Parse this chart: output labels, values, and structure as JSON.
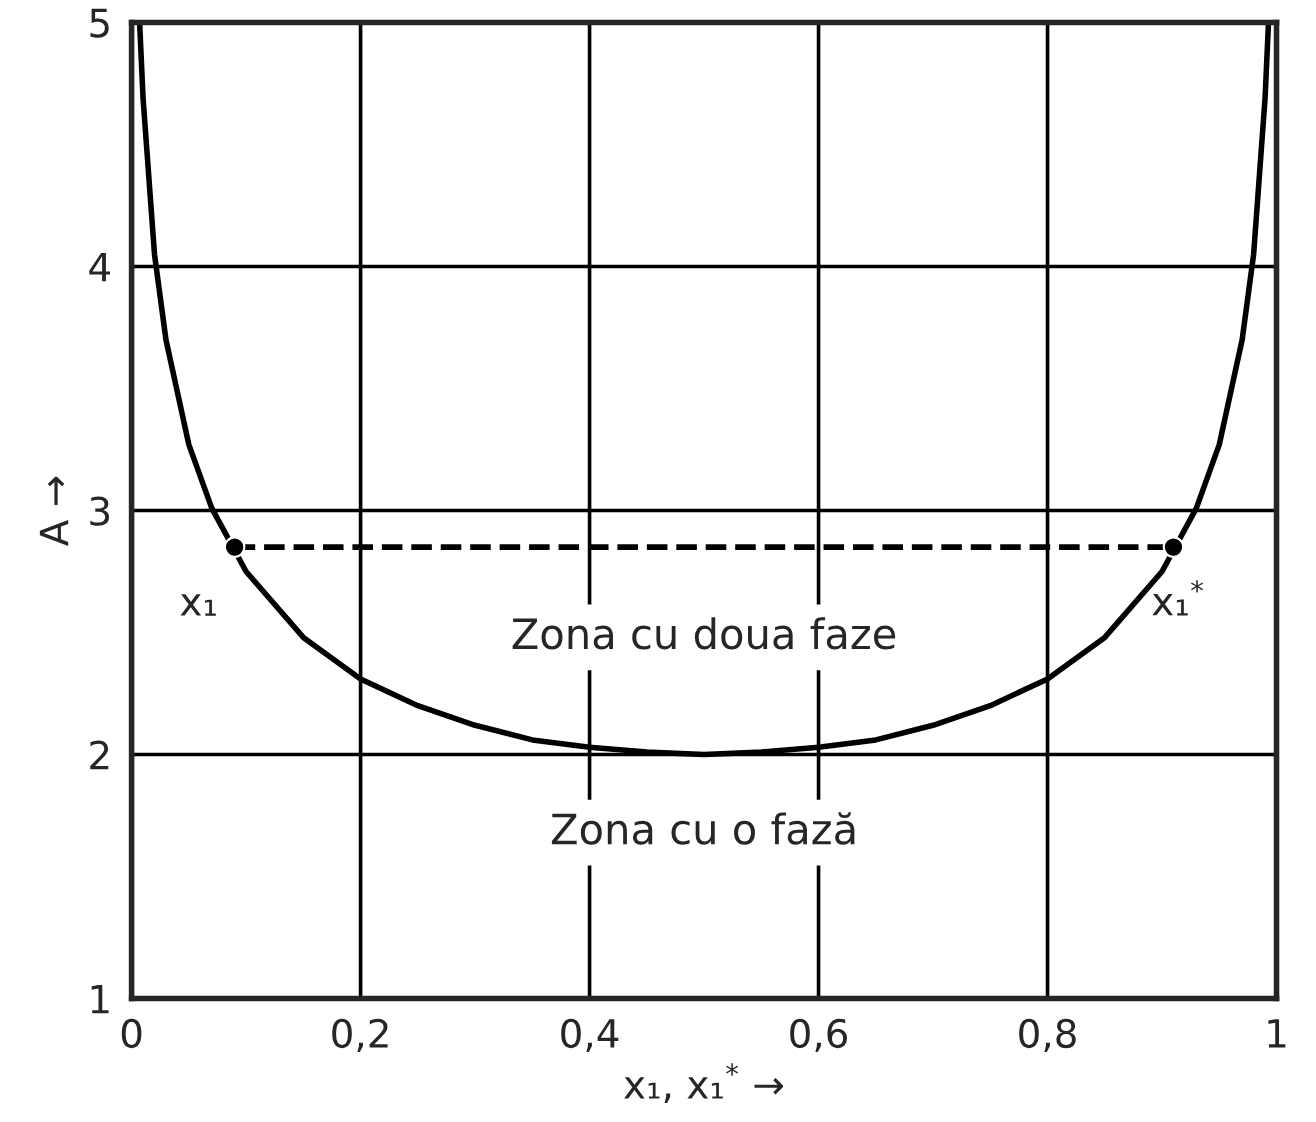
{
  "chart_data": {
    "type": "line",
    "xlabel": "x₁, x₁$^{*}$ →",
    "ylabel": "A →",
    "series": [
      {
        "color": "#000000",
        "line_style": "solid",
        "marker": "none",
        "x": [
          0.007,
          0.01,
          0.02,
          0.03,
          0.05,
          0.07,
          0.1,
          0.15,
          0.2,
          0.25,
          0.3,
          0.35,
          0.4,
          0.45,
          0.5,
          0.55,
          0.6,
          0.65,
          0.7,
          0.75,
          0.8,
          0.85,
          0.9,
          0.93,
          0.95,
          0.97,
          0.98,
          0.99,
          0.993
        ],
        "values": [
          5.0,
          4.69,
          4.05,
          3.7,
          3.27,
          3.01,
          2.75,
          2.48,
          2.31,
          2.2,
          2.12,
          2.06,
          2.03,
          2.01,
          2.0,
          2.01,
          2.03,
          2.06,
          2.12,
          2.2,
          2.31,
          2.48,
          2.75,
          3.01,
          3.27,
          3.7,
          4.05,
          4.69,
          5.0
        ]
      },
      {
        "color": "#000000",
        "line_style": "dashed",
        "marker": "circle",
        "x": [
          0.09,
          0.91
        ],
        "values": [
          2.85,
          2.85
        ]
      }
    ],
    "annotations": [
      {
        "text": "x₁",
        "x": 0.09,
        "y": 2.85
      },
      {
        "text": "x₁$^{*}$",
        "x": 0.91,
        "y": 2.85
      },
      "Zona cu doua faze",
      "Zona cu o fază"
    ],
    "xlim": [
      0,
      1
    ],
    "ylim": [
      1,
      5
    ],
    "xticks": [
      0,
      {
        "value": 0.2,
        "label": "0,2"
      },
      {
        "value": 0.4,
        "label": "0,4"
      },
      {
        "value": 0.6,
        "label": "0,6"
      },
      {
        "value": 0.8,
        "label": "0,8"
      },
      1
    ],
    "yticks": [
      1,
      2,
      3,
      4,
      5
    ],
    "grid": true,
    "legend": false
  }
}
